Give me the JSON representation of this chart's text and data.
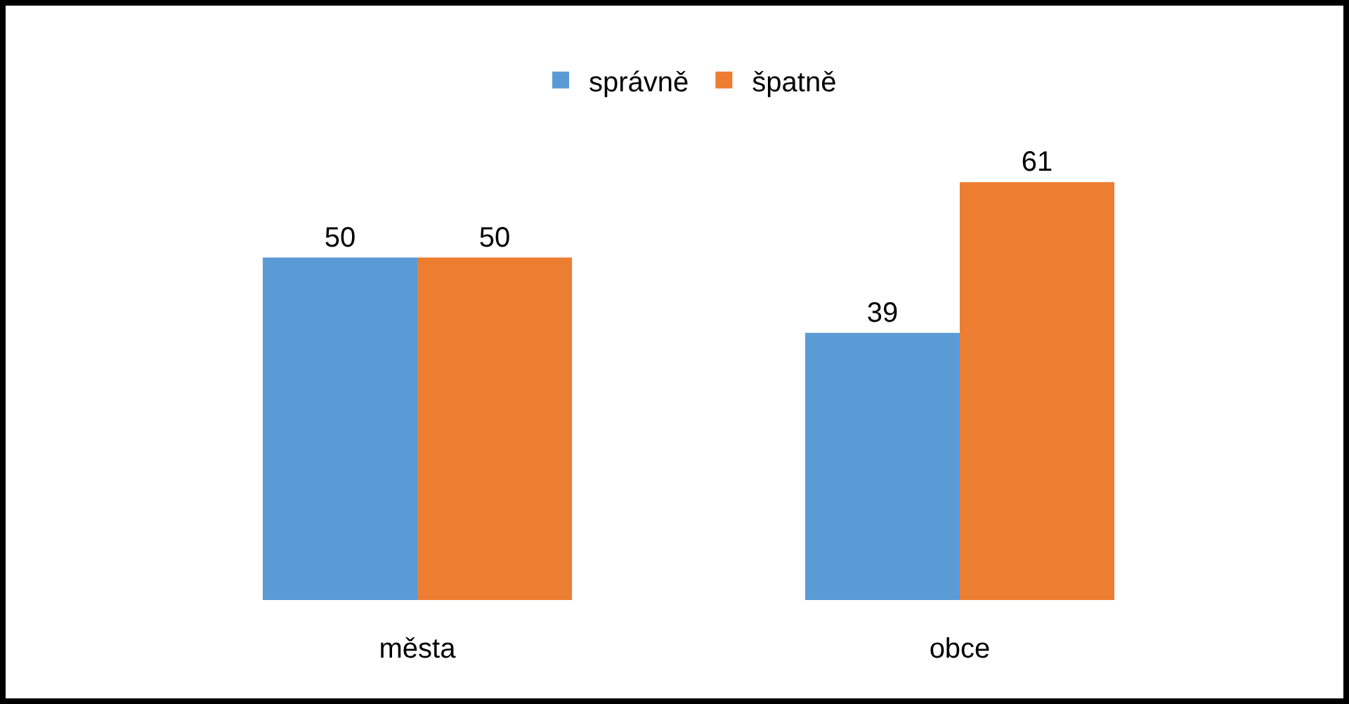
{
  "chart_data": {
    "type": "bar",
    "categories": [
      "města",
      "obce"
    ],
    "series": [
      {
        "name": "správně",
        "color": "#5b9bd5",
        "values": [
          50,
          39
        ]
      },
      {
        "name": "špatně",
        "color": "#ed7d31",
        "values": [
          50,
          61
        ]
      }
    ],
    "data_labels": true,
    "legend": "top"
  }
}
